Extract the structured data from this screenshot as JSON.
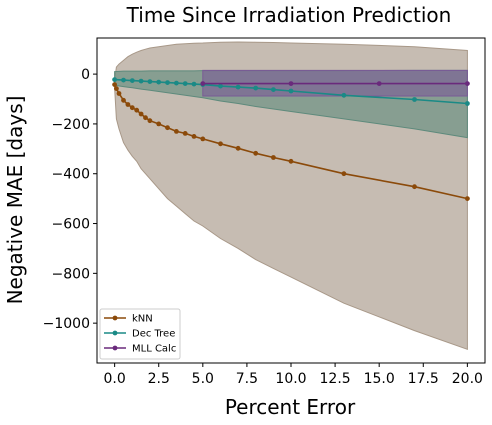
{
  "chart_data": {
    "type": "line",
    "title": "Time Since Irradiation Prediction",
    "xlabel": "Percent Error",
    "ylabel": "Negative MAE [days]",
    "xlim": [
      -1,
      21
    ],
    "ylim": [
      -1160,
      145
    ],
    "xticks": [
      0,
      2.5,
      5,
      7.5,
      10,
      12.5,
      15,
      17.5,
      20
    ],
    "xtick_labels": [
      "0.0",
      "2.5",
      "5.0",
      "7.5",
      "10.0",
      "12.5",
      "15.0",
      "17.5",
      "20.0"
    ],
    "yticks": [
      0,
      -200,
      -400,
      -600,
      -800,
      -1000
    ],
    "ytick_labels": [
      "0",
      "−200",
      "−400",
      "−600",
      "−800",
      "−1000"
    ],
    "grid": false,
    "legend_position": "lower-left",
    "series": [
      {
        "name": "kNN",
        "color": "#8b4a0a",
        "band_color": "#a89888",
        "x": [
          0,
          0.1,
          0.25,
          0.5,
          0.75,
          1,
          1.25,
          1.5,
          1.75,
          2,
          2.5,
          3,
          3.5,
          4,
          4.5,
          5,
          6,
          7,
          8,
          9,
          10,
          13,
          17,
          20
        ],
        "y": [
          -42,
          -58,
          -78,
          -105,
          -122,
          -135,
          -145,
          -160,
          -175,
          -187,
          -200,
          -215,
          -230,
          -238,
          -250,
          -260,
          -280,
          -298,
          -318,
          -335,
          -350,
          -400,
          -452,
          -500
        ],
        "upper": [
          -25,
          28,
          40,
          55,
          70,
          80,
          88,
          95,
          100,
          105,
          110,
          115,
          120,
          122,
          124,
          125,
          128,
          129,
          128,
          127,
          125,
          120,
          110,
          95
        ],
        "lower": [
          -55,
          -180,
          -220,
          -275,
          -305,
          -330,
          -350,
          -380,
          -400,
          -420,
          -460,
          -500,
          -530,
          -560,
          -590,
          -610,
          -660,
          -700,
          -745,
          -780,
          -815,
          -920,
          -1030,
          -1105
        ]
      },
      {
        "name": "Dec Tree",
        "color": "#1a8a86",
        "band_color": "#5e8a7c",
        "x": [
          0,
          0.5,
          1,
          1.5,
          2,
          2.5,
          3,
          3.5,
          4,
          4.5,
          5,
          6,
          7,
          8,
          9,
          10,
          13,
          17,
          20
        ],
        "y": [
          -22,
          -24,
          -26,
          -28,
          -30,
          -32,
          -34,
          -36,
          -38,
          -40,
          -42,
          -48,
          -52,
          -56,
          -62,
          -68,
          -85,
          -102,
          -118
        ],
        "upper": [
          10,
          12,
          12,
          12,
          13,
          13,
          13,
          13,
          13,
          13,
          14,
          14,
          14,
          14,
          14,
          14,
          14,
          15,
          15
        ],
        "lower": [
          -45,
          -50,
          -55,
          -60,
          -65,
          -70,
          -75,
          -80,
          -85,
          -90,
          -95,
          -108,
          -118,
          -130,
          -140,
          -150,
          -180,
          -220,
          -255
        ]
      },
      {
        "name": "MLL Calc",
        "color": "#6a2a7c",
        "band_color": "#7a5a96",
        "x": [
          5,
          10,
          15,
          20
        ],
        "y": [
          -38,
          -38,
          -38,
          -38
        ],
        "upper": [
          15,
          15,
          15,
          15
        ],
        "lower": [
          -88,
          -88,
          -88,
          -88
        ]
      }
    ]
  }
}
